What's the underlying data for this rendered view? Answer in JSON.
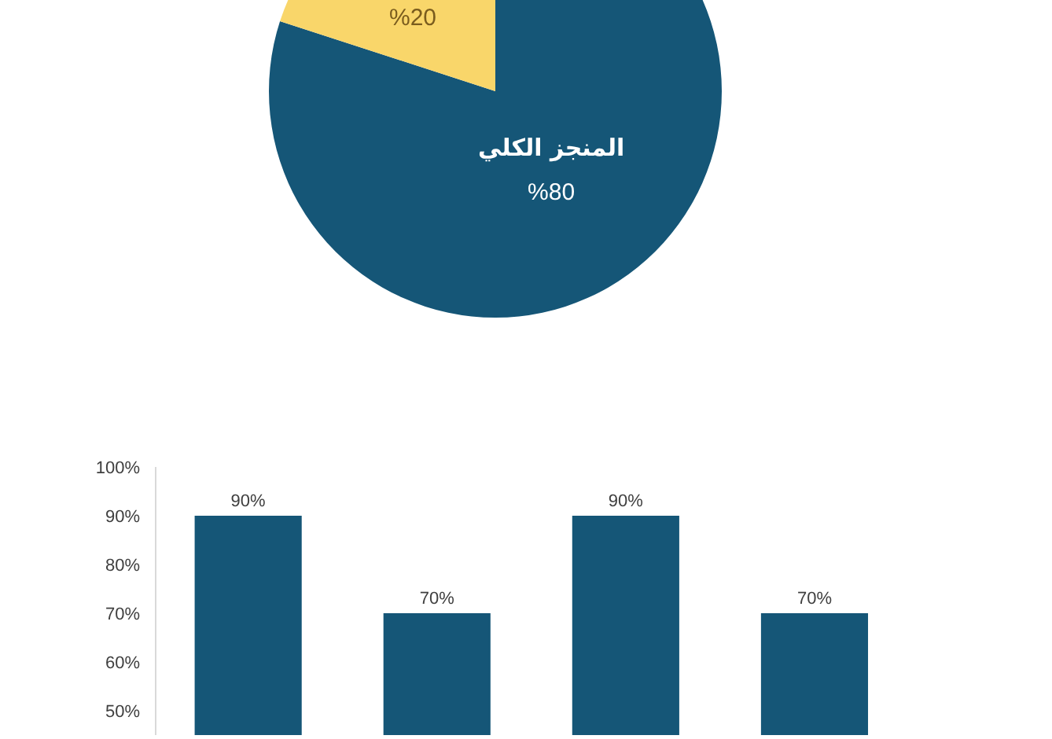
{
  "chart_data": [
    {
      "type": "pie",
      "categories": [
        "المنجز الكلي",
        null
      ],
      "values": [
        80,
        20
      ],
      "colors": [
        "#155677",
        "#f9d66a"
      ],
      "value_labels": [
        "%80",
        "%20"
      ]
    },
    {
      "type": "bar",
      "categories": [
        null,
        null,
        null,
        null
      ],
      "values": [
        90,
        70,
        90,
        70
      ],
      "color": "#155677",
      "ylim": [
        45,
        100
      ],
      "yticks": [
        {
          "value": 50,
          "label": "50%"
        },
        {
          "value": 60,
          "label": "60%"
        },
        {
          "value": 70,
          "label": "70%"
        },
        {
          "value": 80,
          "label": "80%"
        },
        {
          "value": 90,
          "label": "90%"
        },
        {
          "value": 100,
          "label": "100%"
        }
      ],
      "value_labels": [
        "90%",
        "70%",
        "90%",
        "70%"
      ]
    }
  ]
}
